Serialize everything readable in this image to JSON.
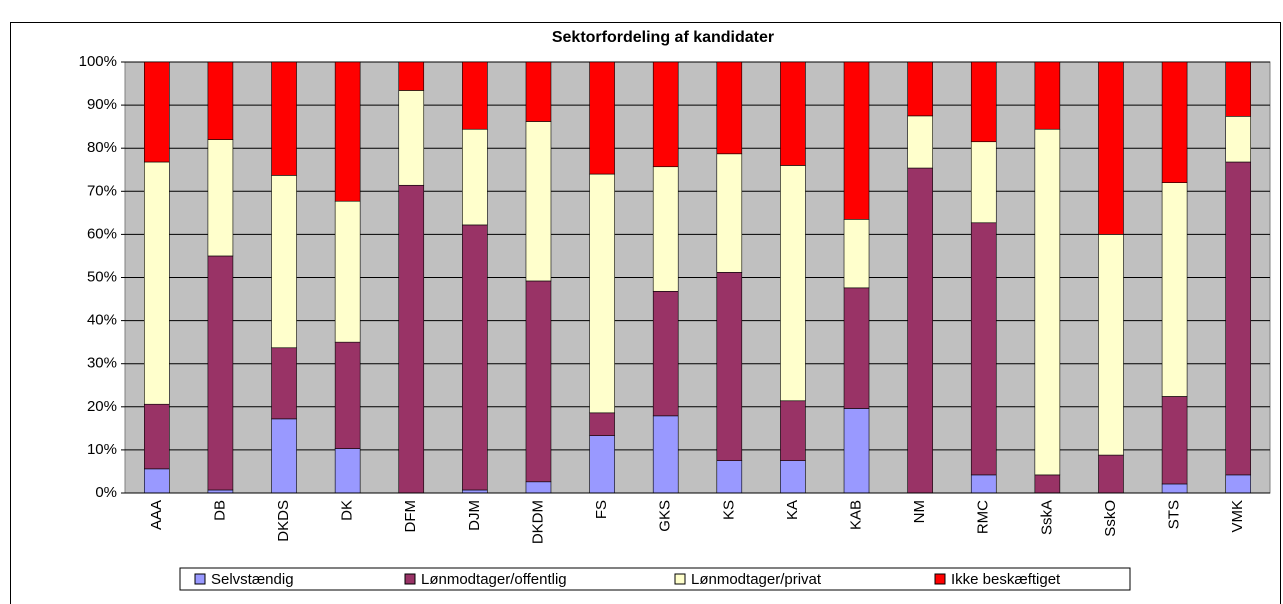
{
  "chart_data": {
    "type": "stacked-bar",
    "title": "Sektorfordeling af kandidater",
    "categories": [
      "AAA",
      "DB",
      "DKDS",
      "DK",
      "DFM",
      "DJM",
      "DKDM",
      "FS",
      "GKS",
      "KS",
      "KA",
      "KAB",
      "NM",
      "RMC",
      "SskA",
      "SskO",
      "STS",
      "VMK"
    ],
    "series": [
      {
        "name": "Selvstændig",
        "color": "#9999ff",
        "values": [
          5.6,
          0.7,
          17.2,
          10.3,
          0,
          0.7,
          2.6,
          13.3,
          17.9,
          7.5,
          7.5,
          19.6,
          0,
          4.2,
          0,
          0,
          2.1,
          4.2
        ]
      },
      {
        "name": "Lønmodtager/offentlig",
        "color": "#993366",
        "values": [
          15,
          54.3,
          16.5,
          24.7,
          71.4,
          61.5,
          46.6,
          5.3,
          28.9,
          43.7,
          13.9,
          28,
          75.4,
          58.5,
          4.2,
          8.8,
          20.3,
          72.6
        ]
      },
      {
        "name": "Lønmodtager/privat",
        "color": "#ffffcc",
        "values": [
          56.2,
          27,
          40,
          32.7,
          22,
          22.2,
          37,
          55.4,
          28.9,
          27.5,
          54.6,
          15.9,
          12.1,
          18.8,
          80.2,
          51.2,
          49.6,
          10.6
        ]
      },
      {
        "name": "Ikke beskæftiget",
        "color": "#ff0000",
        "values": [
          23.2,
          18,
          26.3,
          32.3,
          6.6,
          15.6,
          13.8,
          26,
          24.3,
          21.3,
          24,
          36.5,
          12.5,
          18.5,
          15.6,
          40,
          28,
          12.6
        ]
      }
    ],
    "ylim": [
      0,
      100
    ],
    "yticks": [
      {
        "value": 0,
        "label": "0%"
      },
      {
        "value": 10,
        "label": "10%"
      },
      {
        "value": 20,
        "label": "20%"
      },
      {
        "value": 30,
        "label": "30%"
      },
      {
        "value": 40,
        "label": "40%"
      },
      {
        "value": 50,
        "label": "50%"
      },
      {
        "value": 60,
        "label": "60%"
      },
      {
        "value": 70,
        "label": "70%"
      },
      {
        "value": 80,
        "label": "80%"
      },
      {
        "value": 90,
        "label": "90%"
      },
      {
        "value": 100,
        "label": "100%"
      }
    ],
    "grid": true,
    "legend": "bottom",
    "background": "#c0c0c0"
  }
}
